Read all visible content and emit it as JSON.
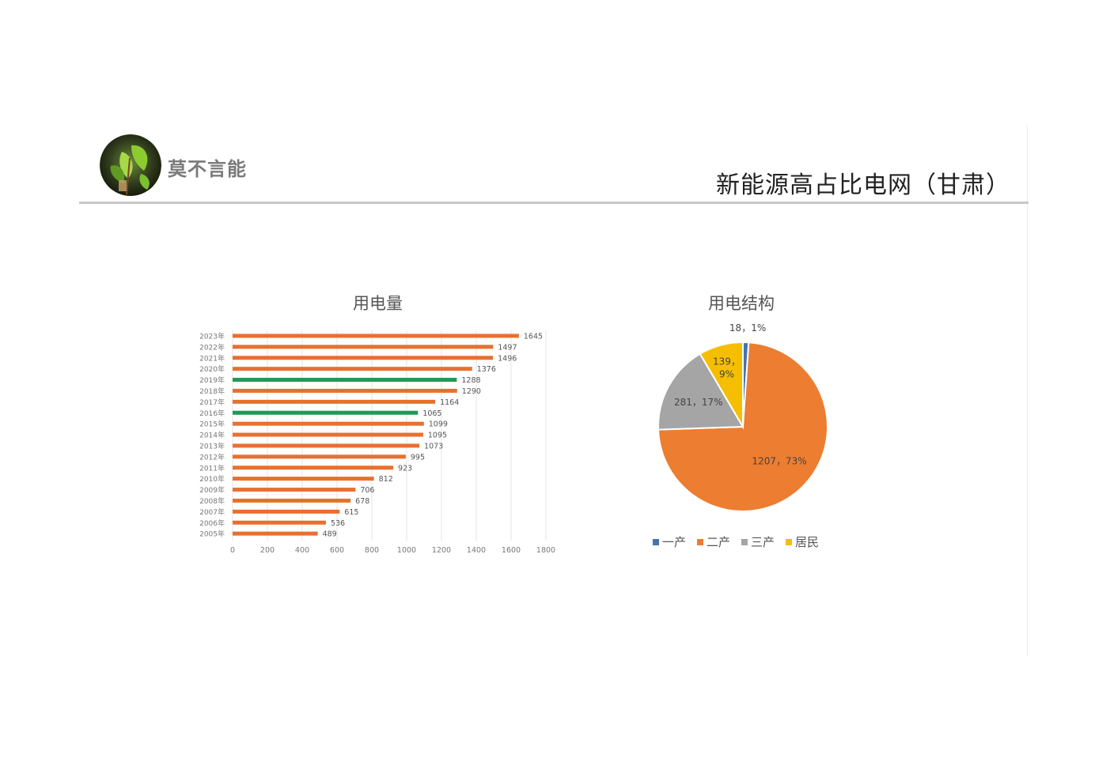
{
  "header": {
    "brand": "莫不言能",
    "title": "新能源高占比电网（甘肃）"
  },
  "colors": {
    "bar_default": "#e8702f",
    "bar_highlight": "#1e9a55",
    "pie_first": "#4a72b0",
    "pie_second": "#ec7d31",
    "pie_third": "#a5a5a5",
    "pie_resident": "#f6be00"
  },
  "chart_data": [
    {
      "type": "bar",
      "orientation": "horizontal",
      "title": "用电量",
      "categories": [
        "2023年",
        "2022年",
        "2021年",
        "2020年",
        "2019年",
        "2018年",
        "2017年",
        "2016年",
        "2015年",
        "2014年",
        "2013年",
        "2012年",
        "2011年",
        "2010年",
        "2009年",
        "2008年",
        "2007年",
        "2006年",
        "2005年"
      ],
      "values": [
        1645,
        1497,
        1496,
        1376,
        1288,
        1290,
        1164,
        1065,
        1099,
        1095,
        1073,
        995,
        923,
        812,
        706,
        678,
        615,
        536,
        489
      ],
      "data_labels": [
        "1645",
        "1497",
        "1496",
        "1376",
        "1288",
        "1290",
        "1164",
        "1065",
        "1099",
        "1095",
        "1073",
        "995",
        "923",
        "812",
        "706",
        "678",
        "615",
        "536",
        "489"
      ],
      "highlighted": [
        "2019年",
        "2016年"
      ],
      "xlim": [
        0,
        1800
      ],
      "xticks": [
        0,
        200,
        400,
        600,
        800,
        1000,
        1200,
        1400,
        1600,
        1800
      ],
      "xtick_labels": [
        "0",
        "200",
        "400",
        "600",
        "800",
        "1000",
        "1200",
        "1400",
        "1600",
        "1800"
      ],
      "grid": true
    },
    {
      "type": "pie",
      "title": "用电结构",
      "labels": [
        "一产",
        "二产",
        "三产",
        "居民"
      ],
      "values": [
        18,
        1207,
        281,
        139
      ],
      "percents": [
        1,
        73,
        17,
        9
      ],
      "data_labels": [
        "18，1%",
        "1207，73%",
        "281，17%",
        "139，9%"
      ],
      "legend": "bottom"
    }
  ]
}
